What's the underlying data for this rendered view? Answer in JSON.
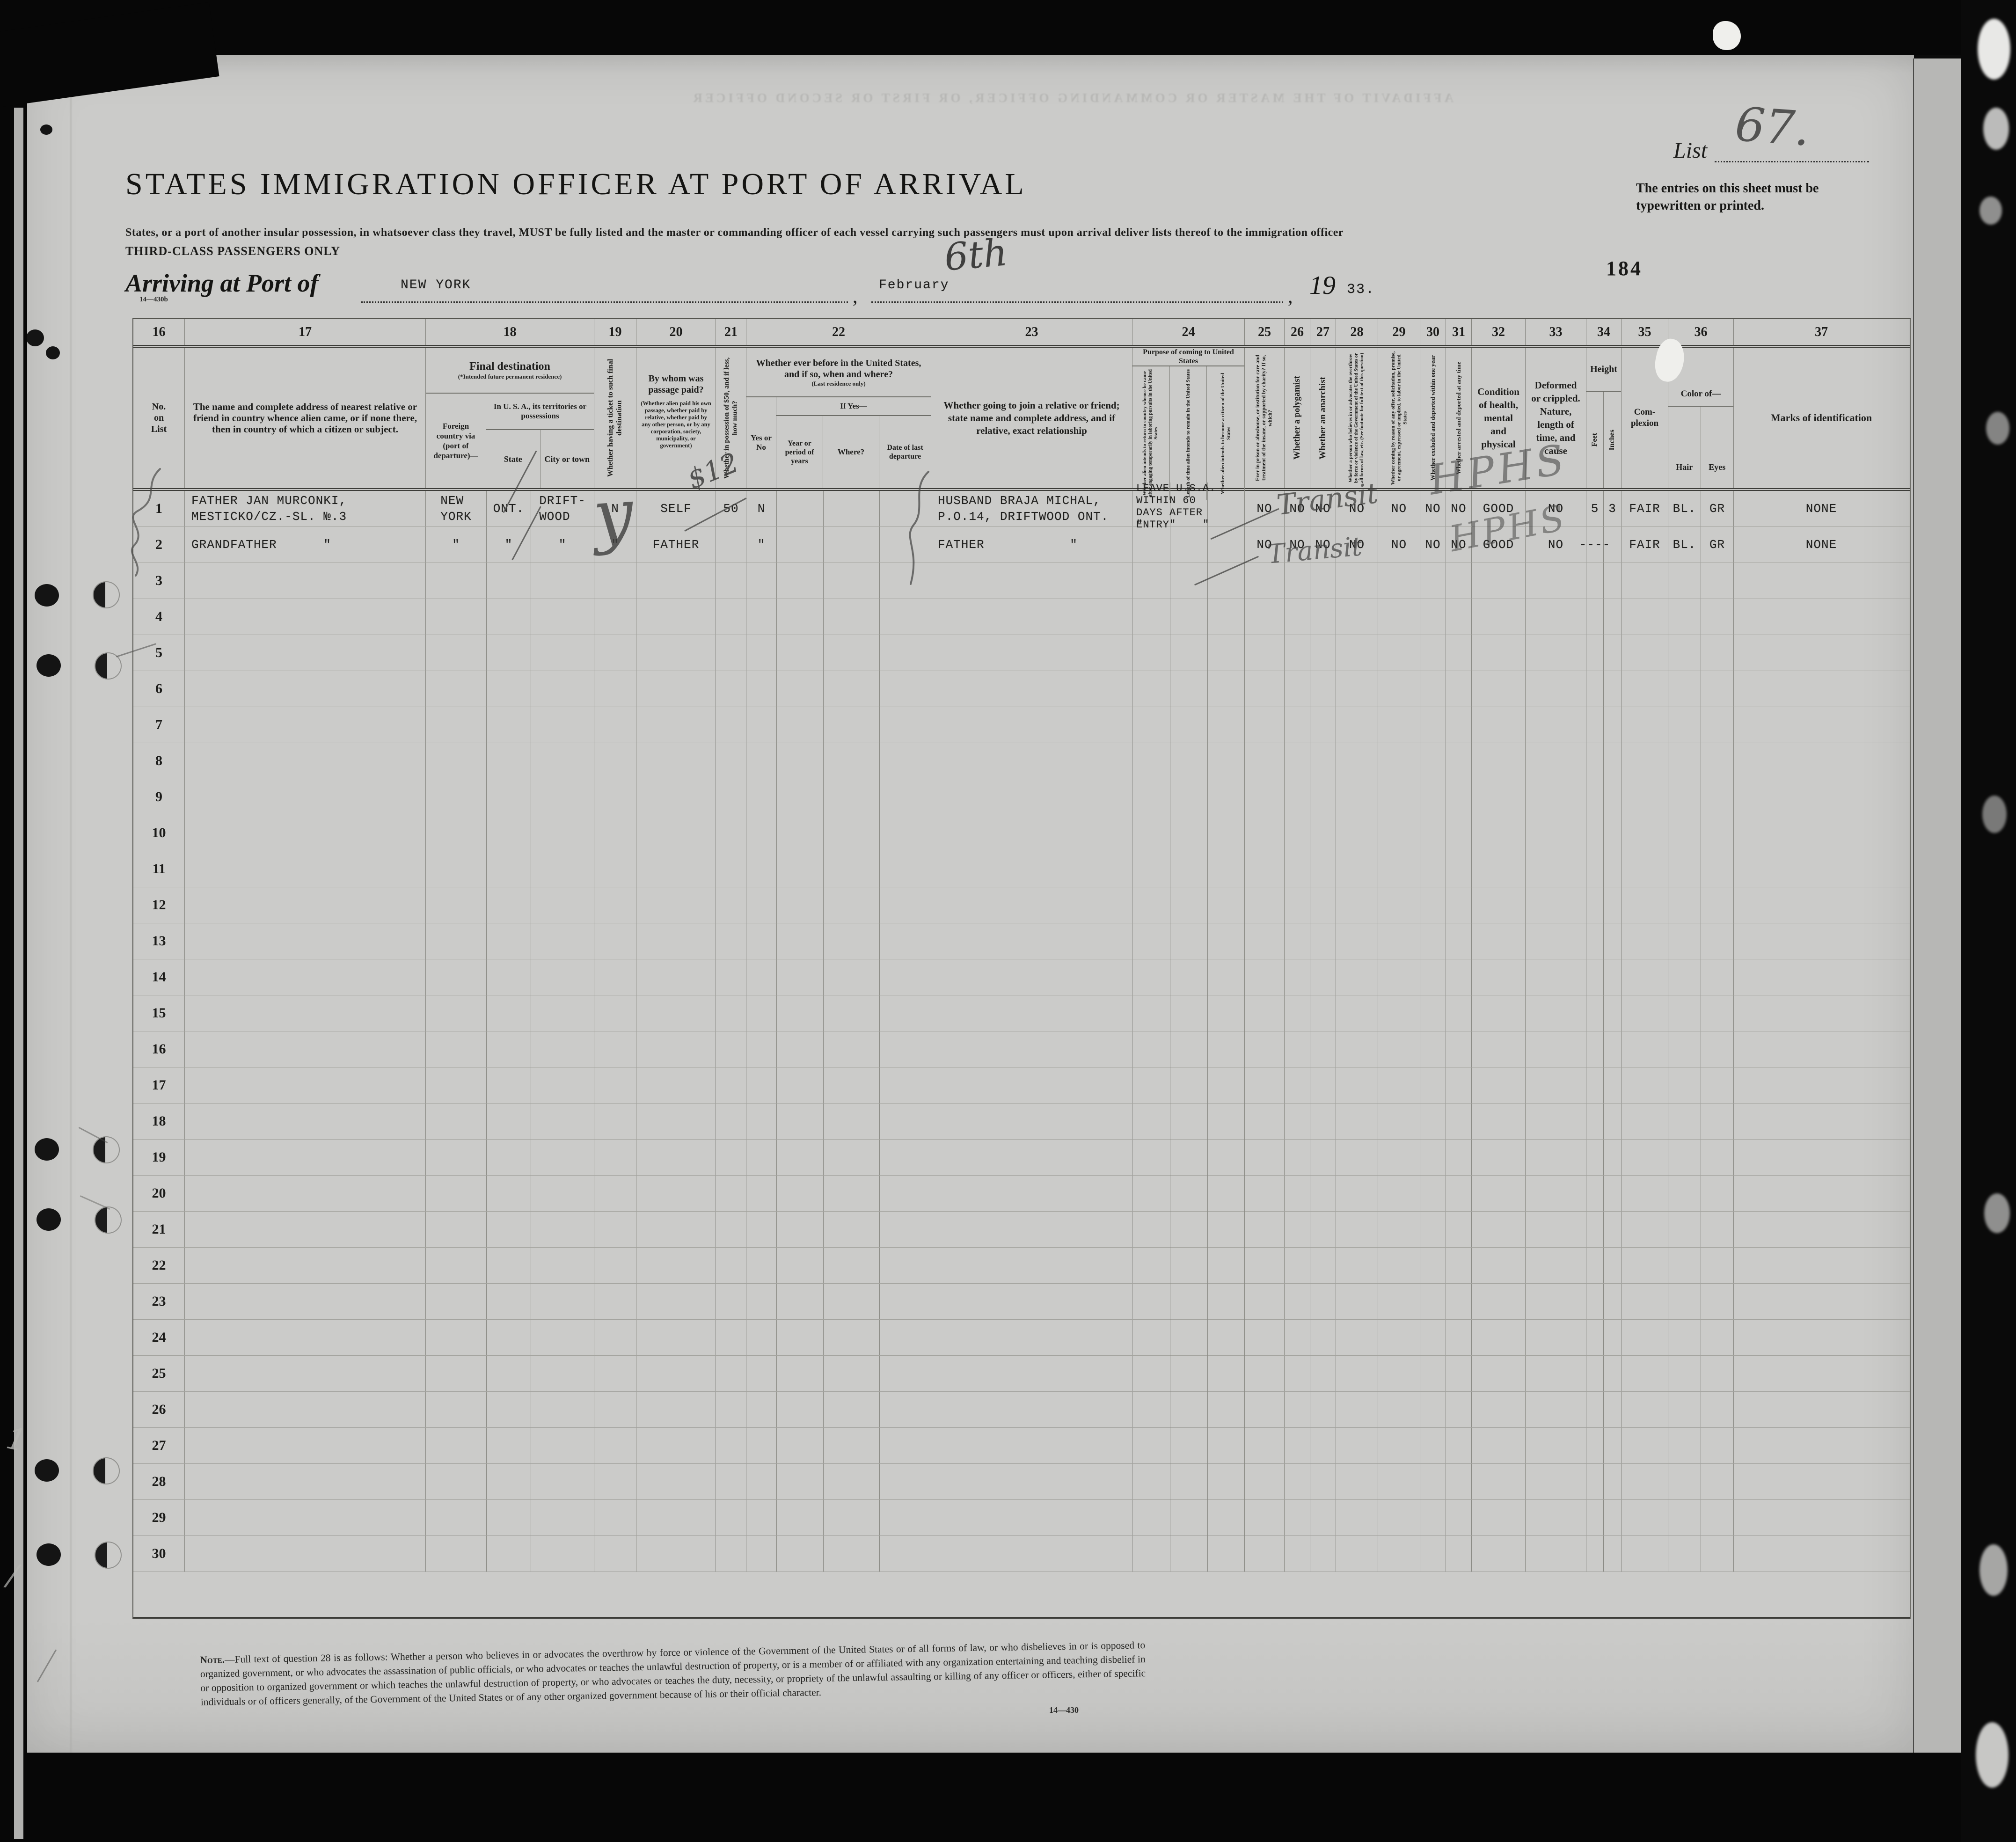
{
  "page": {
    "list_label": "List",
    "list_number": "67.",
    "typed_requirement": "The entries on this sheet must be typewritten or printed.",
    "stamp_number": "184",
    "title": "STATES IMMIGRATION OFFICER AT PORT OF ARRIVAL",
    "subtitle": "States, or a port of another insular possession, in whatsoever class they travel, MUST be fully listed and the master or commanding officer of each vessel carrying such passengers must upon arrival deliver lists thereof to the immigration officer",
    "class_line": "THIRD-CLASS PASSENGERS ONLY",
    "arrival": {
      "prefix": "Arriving at Port of",
      "port": "NEW YORK",
      "comma1": ",",
      "month": "February",
      "comma2": ",",
      "year_printed": "19",
      "year_typed": "33."
    },
    "form_number_top": "14—430b",
    "ghost_text": "AFFIDAVIT OF THE MASTER OR COMMANDING OFFICER, OR FIRST OR SECOND OFFICER"
  },
  "annotations": {
    "day_handwritten": "6th",
    "ticket_mark": "y",
    "money_mark": "$12",
    "transit_row1": "Transit",
    "transit_row2": "Transit",
    "initials_row1": "HPHS",
    "initials_row2": "HPHS",
    "film_mark_one": "1",
    "film_mark_slash": "/"
  },
  "table": {
    "column_numbers": [
      "16",
      "17",
      "18",
      "19",
      "20",
      "21",
      "22",
      "23",
      "24",
      "25",
      "26",
      "27",
      "28",
      "29",
      "30",
      "31",
      "32",
      "33",
      "34",
      "35",
      "36",
      "37"
    ],
    "headers": {
      "c16": "No.\non\nList",
      "c17": "The name and complete address of nearest relative or friend in country whence alien came, or if none there, then in country of which a citizen or subject.",
      "c18_title": "Final destination",
      "c18_sub": "(*Intended future permanent residence)",
      "c18_foreign": "Foreign country via (port of departure)—",
      "c18_usa": "In U. S. A., its territories or possessions",
      "c18_state": "State",
      "c18_city": "City or town",
      "c19": "Whether having a ticket to such final destination",
      "c20_title": "By whom was passage paid?",
      "c20_sub": "(Whether alien paid his own passage, whether paid by relative, whether paid by any other person, or by any corporation, society, municipality, or government)",
      "c21": "Whether in possession of $50, and if less, how much?",
      "c22_title": "Whether ever before in the United States, and if so, when and where?",
      "c22_sub": "(Last residence only)",
      "c22_yesno": "Yes or No",
      "c22_ifyes": "If Yes—",
      "c22_year": "Year or period of years",
      "c22_where": "Where?",
      "c22_date": "Date of last departure",
      "c23": "Whether going to join a relative or friend; state name and complete address, and if relative, exact relationship",
      "c24_title": "Purpose of coming to United States",
      "c24_a": "Whether alien intends to return to country whence he came after engaging temporarily in laboring pursuits in the United States",
      "c24_b": "Length of time alien intends to remain in the United States",
      "c24_c": "Whether alien intends to become a citizen of the United States",
      "c25": "Ever in prison or almshouse, or institution for care and treatment of the insane, or supported by charity? If so, which?",
      "c26": "Whether a polygamist",
      "c27": "Whether an anarchist",
      "c28": "Whether a person who believes in or advocates the overthrow by force or violence of the Government of the United States or all forms of law, etc. (See footnote for full text of this question)",
      "c29": "Whether coming by reason of any offer, solicitation, promise, or agreement, expressed or implied, to labor in the United States",
      "c30": "Whether excluded and deported within one year",
      "c31": "Whether arrested and deported at any time",
      "c32": "Condition of health, mental and physical",
      "c33": "Deformed or crippled. Nature, length of time, and cause",
      "c34_title": "Height",
      "c34_feet": "Feet",
      "c34_inches": "Inches",
      "c35": "Com-\nplexion",
      "c36_title": "Color of—",
      "c36_hair": "Hair",
      "c36_eyes": "Eyes",
      "c37": "Marks of identification"
    },
    "rows": [
      {
        "num": "1",
        "cells": {
          "c17": "FATHER JAN MURCONKI,\nMESTICKO/CZ.-SL. №.3",
          "c18f": "NEW\nYORK",
          "c18s": "ONT.",
          "c18c": "DRIFT-\nWOOD",
          "c19": "N",
          "c20": "SELF",
          "c21": "50",
          "c22a": "N",
          "c23": "HUSBAND BRAJA MICHAL,\nP.O.14, DRIFTWOOD ONT.",
          "c24": "LEAVE U.S.A.\nWITHIN 60\nDAYS AFTER\nENTRY",
          "c25": "NO",
          "c26": "NO",
          "c27": "NO",
          "c28": "NO",
          "c29": "NO",
          "c30": "NO",
          "c31": "NO",
          "c32": "GOOD",
          "c33": "NO",
          "c34f": "5",
          "c34i": "3",
          "c35": "FAIR",
          "c36h": "BL.",
          "c36e": "GR",
          "c37": "NONE"
        }
      },
      {
        "num": "2",
        "cells": {
          "c17": "GRANDFATHER      \"",
          "c18f": "\"",
          "c18s": "\"",
          "c18c": "\"",
          "c19": "\"",
          "c20": "FATHER",
          "c21": "",
          "c22a": "\"",
          "c23": "FATHER           \"",
          "c24": "\"    \"    \"",
          "c25": "NO",
          "c26": "NO",
          "c27": "NO",
          "c28": "NO",
          "c29": "NO",
          "c30": "NO",
          "c31": "NO",
          "c32": "GOOD",
          "c33": "NO",
          "c34f": "----",
          "c34i": "",
          "c35": "FAIR",
          "c36h": "BL.",
          "c36e": "GR",
          "c37": "NONE"
        }
      },
      {
        "num": "3"
      },
      {
        "num": "4"
      },
      {
        "num": "5"
      },
      {
        "num": "6"
      },
      {
        "num": "7"
      },
      {
        "num": "8"
      },
      {
        "num": "9"
      },
      {
        "num": "10"
      },
      {
        "num": "11"
      },
      {
        "num": "12"
      },
      {
        "num": "13"
      },
      {
        "num": "14"
      },
      {
        "num": "15"
      },
      {
        "num": "16"
      },
      {
        "num": "17"
      },
      {
        "num": "18"
      },
      {
        "num": "19"
      },
      {
        "num": "20"
      },
      {
        "num": "21"
      },
      {
        "num": "22"
      },
      {
        "num": "23"
      },
      {
        "num": "24"
      },
      {
        "num": "25"
      },
      {
        "num": "26"
      },
      {
        "num": "27"
      },
      {
        "num": "28"
      },
      {
        "num": "29"
      },
      {
        "num": "30"
      }
    ]
  },
  "footer": {
    "note_lead": "Note.",
    "note_body": "—Full text of question 28 is as follows: Whether a person who believes in or advocates the overthrow by force or violence of the Government of the United States or of all forms of law, or who disbelieves in or is opposed to organized government, or who advocates the assassination of public officials, or who advocates or teaches the unlawful destruction of property, or is a member of or affiliated with any organization entertaining and teaching disbelief in or opposition to organized government or which teaches the unlawful destruction of property, or who advocates or teaches the duty, necessity, or propriety of the unlawful assaulting or killing of any officer or officers, either of specific individuals or of officers generally, of the Government of the United States or of any other organized government because of his or their official character.",
    "form_number": "14—430"
  }
}
